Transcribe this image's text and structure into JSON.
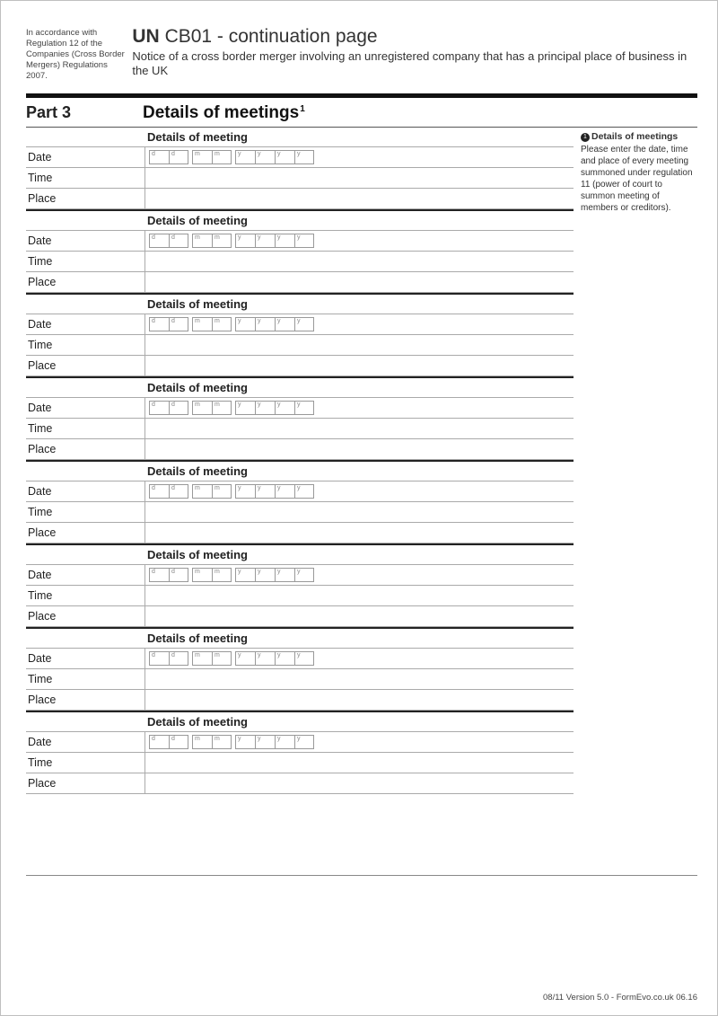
{
  "header": {
    "regulation_note": "In accordance with Regulation 12 of the Companies (Cross Border Mergers) Regulations 2007.",
    "title_prefix": "UN",
    "title_code": "CB01 - continuation page",
    "subtitle": "Notice of a cross border merger involving an unregistered company that has a principal place of business in the UK"
  },
  "part": {
    "label": "Part 3",
    "title": "Details of meetings",
    "ref": "1"
  },
  "sidebar": {
    "ref": "1",
    "title": "Details of meetings",
    "text": "Please enter the date, time and place of every meeting summoned under regulation 11 (power of court to summon meeting of members or creditors)."
  },
  "block": {
    "header": "Details of meeting",
    "rows": {
      "date": "Date",
      "time": "Time",
      "place": "Place"
    },
    "date_hints": [
      "d",
      "d",
      "m",
      "m",
      "y",
      "y",
      "y",
      "y"
    ]
  },
  "num_blocks": 8,
  "footer": "08/11 Version 5.0 - FormEvo.co.uk 06.16",
  "colors": {
    "rule": "#111111",
    "border": "#aaaaaa",
    "text": "#222222"
  }
}
